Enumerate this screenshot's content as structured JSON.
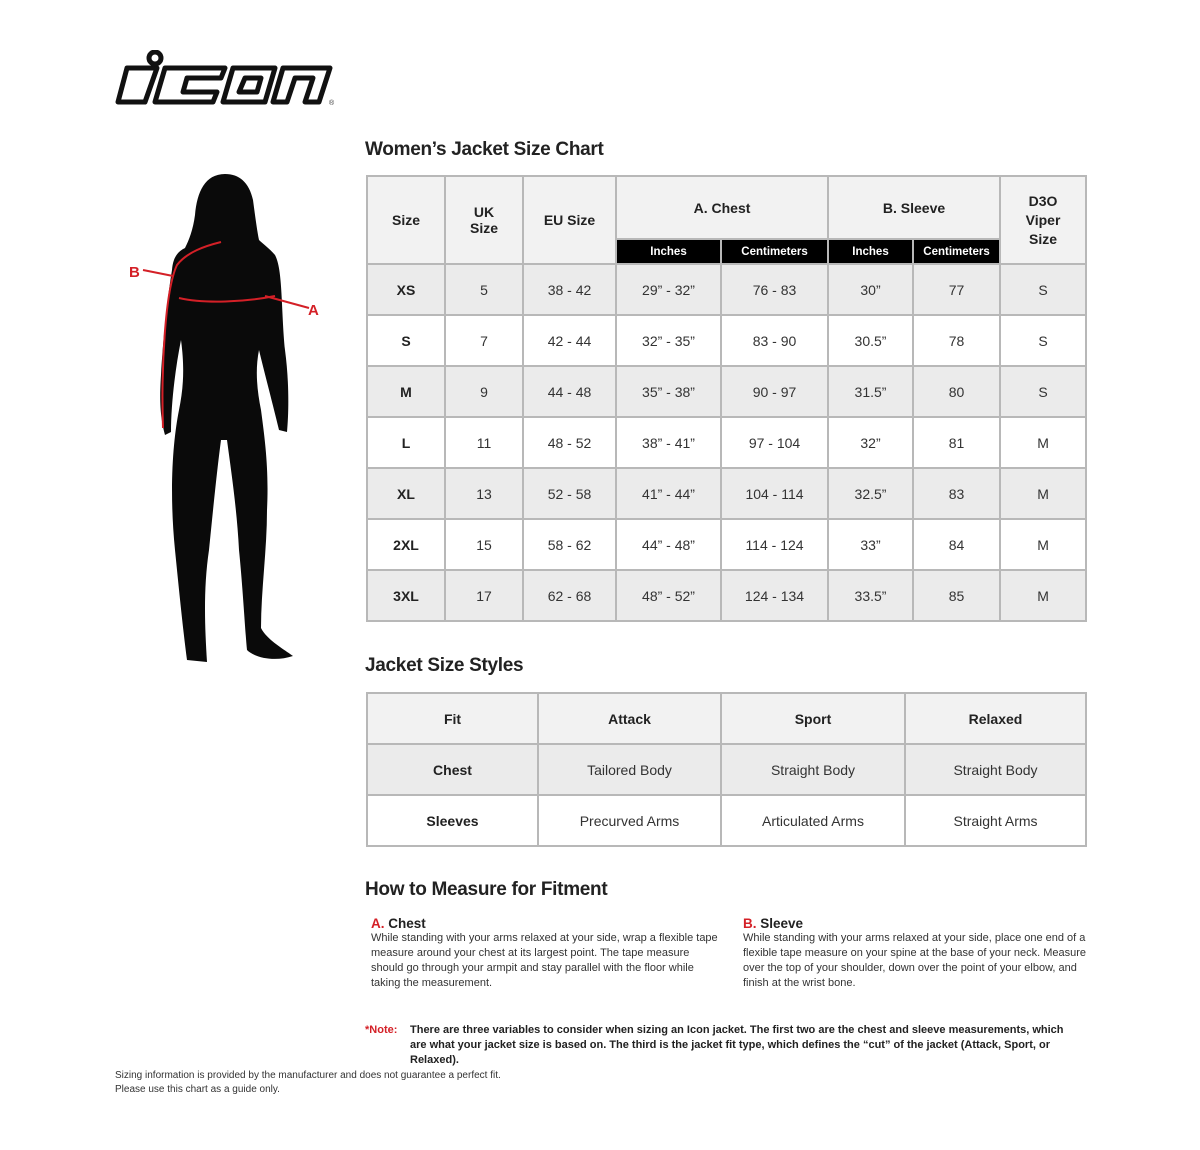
{
  "logo": {
    "text": "icon",
    "registered": "®"
  },
  "figure": {
    "label_a": "A",
    "label_b": "B",
    "accent": "#d42027"
  },
  "size_chart": {
    "title": "Women’s Jacket Size Chart",
    "headers": {
      "size": "Size",
      "uk": "UK Size",
      "eu": "EU Size",
      "chest": "A. Chest",
      "sleeve": "B. Sleeve",
      "d3o": "D3O Viper Size",
      "inches": "Inches",
      "cm": "Centimeters"
    },
    "rows": [
      [
        "XS",
        "5",
        "38 - 42",
        "29” - 32”",
        "76 - 83",
        "30”",
        "77",
        "S"
      ],
      [
        "S",
        "7",
        "42 - 44",
        "32” - 35”",
        "83 - 90",
        "30.5”",
        "78",
        "S"
      ],
      [
        "M",
        "9",
        "44 - 48",
        "35” - 38”",
        "90 - 97",
        "31.5”",
        "80",
        "S"
      ],
      [
        "L",
        "11",
        "48 - 52",
        "38” - 41”",
        "97 - 104",
        "32”",
        "81",
        "M"
      ],
      [
        "XL",
        "13",
        "52 - 58",
        "41” - 44”",
        "104 - 114",
        "32.5”",
        "83",
        "M"
      ],
      [
        "2XL",
        "15",
        "58 - 62",
        "44” - 48”",
        "114 - 124",
        "33”",
        "84",
        "M"
      ],
      [
        "3XL",
        "17",
        "62 - 68",
        "48” - 52”",
        "124 - 134",
        "33.5”",
        "85",
        "M"
      ]
    ]
  },
  "styles": {
    "title": "Jacket Size Styles",
    "headers": [
      "Fit",
      "Attack",
      "Sport",
      "Relaxed"
    ],
    "rows": [
      [
        "Chest",
        "Tailored Body",
        "Straight Body",
        "Straight Body"
      ],
      [
        "Sleeves",
        "Precurved Arms",
        "Articulated Arms",
        "Straight Arms"
      ]
    ]
  },
  "measure": {
    "title": "How to Measure for Fitment",
    "chest": {
      "letter": "A.",
      "name": "Chest",
      "text": "While standing with your arms relaxed at your side, wrap a flexible tape measure around your chest at its largest point. The tape measure should go through your armpit and stay parallel with the floor while taking the measurement."
    },
    "sleeve": {
      "letter": "B.",
      "name": "Sleeve",
      "text": "While standing with your arms relaxed at your side, place one end of a flexible tape measure on your spine at the base of your neck. Measure over the top of your shoulder, down over the point of your elbow, and finish at the wrist bone."
    },
    "note_label": "*Note:",
    "note_text": "There are three variables to consider when sizing an Icon jacket. The first two are the chest and sleeve measurements, which are what your jacket size is based on. The third is the jacket fit type, which defines the “cut” of the jacket (Attack, Sport, or Relaxed)."
  },
  "disclaimer": {
    "line1": "Sizing information is provided by the manufacturer and does not guarantee a perfect fit.",
    "line2": "Please use this chart as a guide only."
  }
}
